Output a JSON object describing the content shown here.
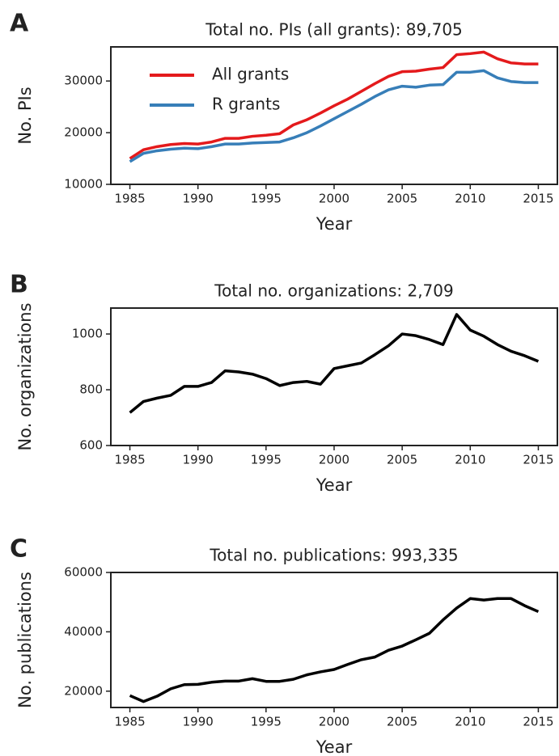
{
  "chart_data": [
    {
      "type": "line",
      "panel_label": "A",
      "title": "Total no. PIs (all grants): 89,705",
      "x_label": "Year",
      "y_label": "No. PIs",
      "x": [
        1985,
        1986,
        1987,
        1988,
        1989,
        1990,
        1991,
        1992,
        1993,
        1994,
        1995,
        1996,
        1997,
        1998,
        1999,
        2000,
        2001,
        2002,
        2003,
        2004,
        2005,
        2006,
        2007,
        2008,
        2009,
        2010,
        2011,
        2012,
        2013,
        2014,
        2015
      ],
      "series": [
        {
          "name": "All grants",
          "color": "#e41a1c",
          "values": [
            15000,
            16700,
            17300,
            17700,
            17900,
            17800,
            18200,
            18900,
            18900,
            19300,
            19500,
            19800,
            21500,
            22500,
            23800,
            25200,
            26500,
            28000,
            29500,
            30900,
            31800,
            31900,
            32300,
            32600,
            35100,
            35300,
            35600,
            34300,
            33500,
            33300,
            33300
          ]
        },
        {
          "name": "R grants",
          "color": "#377eb8",
          "values": [
            14400,
            16000,
            16500,
            16800,
            17000,
            16900,
            17300,
            17800,
            17800,
            18000,
            18100,
            18200,
            19000,
            20000,
            21300,
            22700,
            24100,
            25500,
            27000,
            28300,
            29000,
            28800,
            29200,
            29300,
            31700,
            31700,
            32000,
            30600,
            29900,
            29700,
            29700
          ]
        }
      ],
      "xlim": [
        1983.6,
        2016.4
      ],
      "xticks": [
        1985,
        1990,
        1995,
        2000,
        2005,
        2010,
        2015
      ],
      "ylim": [
        10000,
        36600
      ],
      "yticks": [
        10000,
        20000,
        30000
      ],
      "legend": "upper left"
    },
    {
      "type": "line",
      "panel_label": "B",
      "title": "Total no. organizations: 2,709",
      "x_label": "Year",
      "y_label": "No. organizations",
      "x": [
        1985,
        1986,
        1987,
        1988,
        1989,
        1990,
        1991,
        1992,
        1993,
        1994,
        1995,
        1996,
        1997,
        1998,
        1999,
        2000,
        2001,
        2002,
        2003,
        2004,
        2005,
        2006,
        2007,
        2008,
        2009,
        2010,
        2011,
        2012,
        2013,
        2014,
        2015
      ],
      "series": [
        {
          "color": "#000000",
          "values": [
            718,
            758,
            770,
            780,
            812,
            812,
            826,
            868,
            864,
            856,
            840,
            815,
            826,
            830,
            820,
            876,
            886,
            896,
            926,
            958,
            1000,
            994,
            980,
            962,
            1070,
            1014,
            992,
            962,
            938,
            922,
            902
          ]
        }
      ],
      "xlim": [
        1983.6,
        2016.4
      ],
      "xticks": [
        1985,
        1990,
        1995,
        2000,
        2005,
        2010,
        2015
      ],
      "ylim": [
        600,
        1093
      ],
      "yticks": [
        600,
        800,
        1000
      ]
    },
    {
      "type": "line",
      "panel_label": "C",
      "title": "Total no. publications: 993,335",
      "x_label": "Year",
      "y_label": "No. publications",
      "x": [
        1985,
        1986,
        1987,
        1988,
        1989,
        1990,
        1991,
        1992,
        1993,
        1994,
        1995,
        1996,
        1997,
        1998,
        1999,
        2000,
        2001,
        2002,
        2003,
        2004,
        2005,
        2006,
        2007,
        2008,
        2009,
        2010,
        2011,
        2012,
        2013,
        2014,
        2015
      ],
      "series": [
        {
          "color": "#000000",
          "values": [
            18500,
            16500,
            18300,
            20800,
            22200,
            22300,
            23000,
            23400,
            23400,
            24200,
            23300,
            23300,
            24000,
            25500,
            26500,
            27300,
            29000,
            30600,
            31500,
            33800,
            35200,
            37300,
            39500,
            44000,
            48000,
            51200,
            50700,
            51200,
            51200,
            48800,
            46800
          ]
        }
      ],
      "xlim": [
        1983.6,
        2016.4
      ],
      "xticks": [
        1985,
        1990,
        1995,
        2000,
        2005,
        2010,
        2015
      ],
      "ylim": [
        14500,
        60000
      ],
      "yticks": [
        20000,
        40000,
        60000
      ]
    }
  ]
}
